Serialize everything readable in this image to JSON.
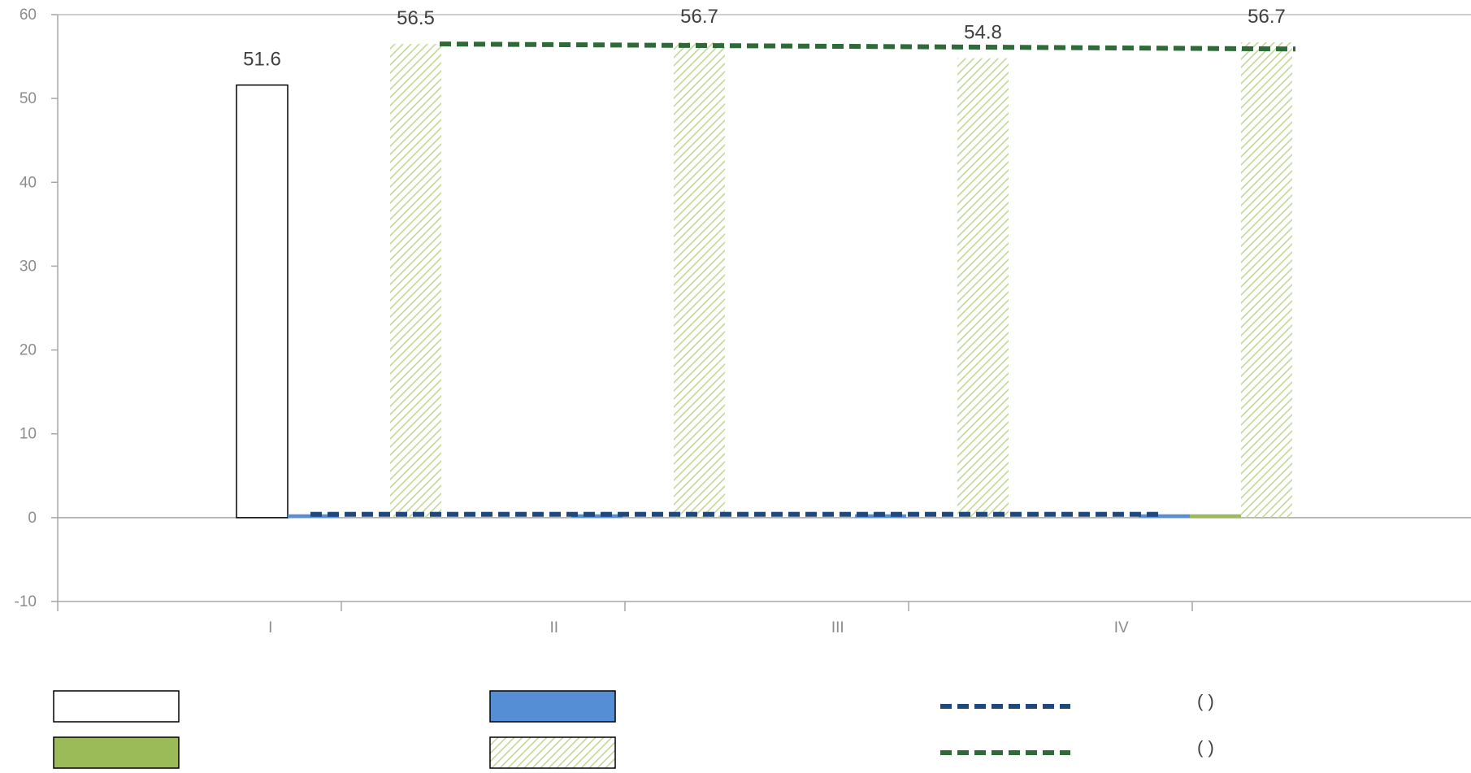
{
  "chart_data": {
    "type": "bar",
    "categories": [
      "I",
      "II",
      "III",
      "IV"
    ],
    "ylim": [
      -10,
      60
    ],
    "yticks": [
      -10,
      0,
      10,
      20,
      30,
      40,
      50,
      60
    ],
    "grid": false,
    "legend_position": "bottom",
    "series": [
      {
        "kind": "bar",
        "style": "outline",
        "color": "#000000",
        "values": [
          51.6,
          0,
          0,
          0
        ],
        "labels": [
          "51.6",
          "",
          "",
          ""
        ]
      },
      {
        "kind": "bar",
        "style": "solid",
        "color": "#558ed5",
        "values": [
          0.4,
          0.4,
          0.4,
          0.4
        ],
        "labels": [
          "",
          "",
          "",
          ""
        ]
      },
      {
        "kind": "bar",
        "style": "solid",
        "color": "#9bbb59",
        "values": [
          0,
          0,
          0,
          0.4
        ],
        "labels": [
          "",
          "",
          "",
          ""
        ]
      },
      {
        "kind": "bar",
        "style": "hatched",
        "color": "#c3d69b",
        "values": [
          56.5,
          56.7,
          54.8,
          56.7
        ],
        "labels": [
          "56.5",
          "56.7",
          "54.8",
          "56.7"
        ]
      },
      {
        "kind": "line",
        "style": "dashed",
        "color": "#1f497d",
        "values": [
          0.4,
          0.4,
          0.4,
          0.4
        ]
      },
      {
        "kind": "line",
        "style": "dashed",
        "color": "#2e6b38",
        "values": [
          56.5,
          56.3,
          56.1,
          55.9
        ]
      }
    ],
    "legend": [
      {
        "text": "",
        "symbol": "outline"
      },
      {
        "text": "",
        "symbol": "solid-blue"
      },
      {
        "text": "(      )",
        "symbol": "dash-blue"
      },
      {
        "text": "",
        "symbol": "solid-green"
      },
      {
        "text": "",
        "symbol": "hatched"
      },
      {
        "text": "(         )",
        "symbol": "dash-green"
      }
    ]
  }
}
